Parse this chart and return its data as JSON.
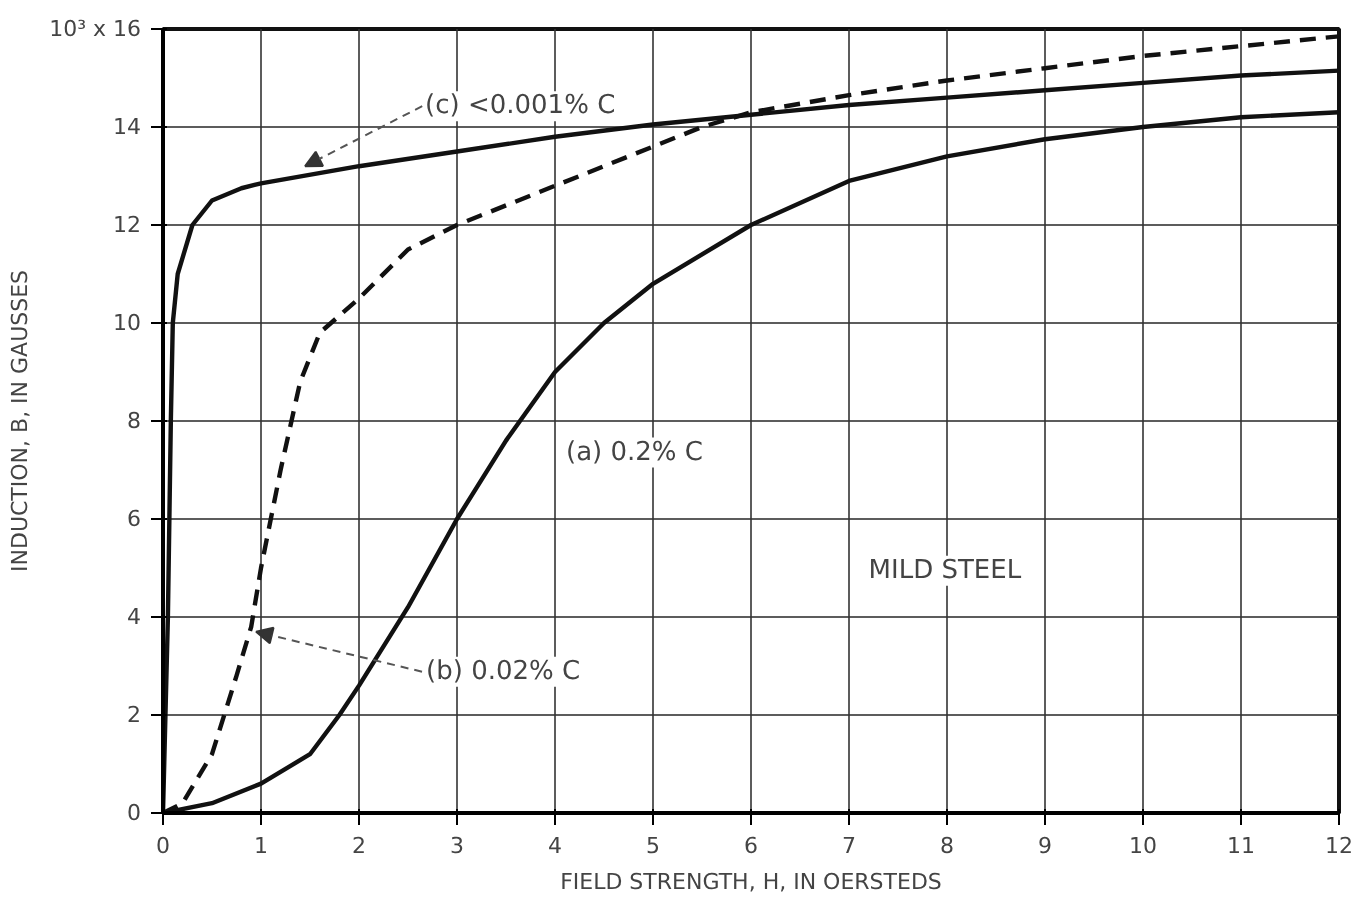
{
  "chart_data": {
    "type": "line",
    "xlabel": "FIELD STRENGTH, H, IN OERSTEDS",
    "ylabel": "INDUCTION, B, IN GAUSSES",
    "xlim": [
      0,
      12
    ],
    "ylim": [
      0,
      16
    ],
    "xticks": [
      0,
      1,
      2,
      3,
      4,
      5,
      6,
      7,
      8,
      9,
      10,
      11,
      12
    ],
    "yticks": [
      0,
      2,
      4,
      6,
      8,
      10,
      12,
      14,
      {
        "value": 16,
        "label": "10³ x 16"
      }
    ],
    "grid": true,
    "series": [
      {
        "color": "#111111",
        "line_style": "solid",
        "x": [
          0,
          0.5,
          1,
          1.5,
          1.8,
          2,
          2.5,
          3,
          3.5,
          4,
          4.5,
          5,
          6,
          7,
          8,
          9,
          10,
          11,
          12
        ],
        "values": [
          0,
          0.2,
          0.6,
          1.2,
          2,
          2.6,
          4.2,
          6,
          7.6,
          9,
          10,
          10.8,
          12,
          12.9,
          13.4,
          13.75,
          14,
          14.2,
          14.3
        ]
      },
      {
        "color": "#111111",
        "line_style": "dashed",
        "x": [
          0,
          0.2,
          0.5,
          0.75,
          0.9,
          1,
          1.2,
          1.4,
          1.6,
          2,
          2.5,
          3,
          4,
          5,
          5.5,
          6,
          7,
          8,
          9,
          10,
          11,
          12
        ],
        "values": [
          0,
          0.2,
          1.2,
          2.8,
          3.8,
          5,
          7,
          8.8,
          9.8,
          10.5,
          11.5,
          12,
          12.8,
          13.6,
          14,
          14.3,
          14.65,
          14.95,
          15.2,
          15.45,
          15.65,
          15.85
        ]
      },
      {
        "color": "#111111",
        "line_style": "solid",
        "x": [
          0,
          0.05,
          0.08,
          0.1,
          0.15,
          0.3,
          0.5,
          0.8,
          1,
          2,
          3,
          4,
          5,
          6,
          7,
          8,
          9,
          10,
          11,
          12
        ],
        "values": [
          0,
          4,
          8,
          10,
          11,
          12,
          12.5,
          12.75,
          12.85,
          13.2,
          13.5,
          13.8,
          14.05,
          14.25,
          14.45,
          14.6,
          14.75,
          14.9,
          15.05,
          15.15
        ]
      }
    ],
    "annotations": [
      {
        "text": "(a) 0.2% C",
        "x": 3.5,
        "y": 7.6
      },
      {
        "text": "(b) 0.02% C",
        "x": 0.95,
        "y": 3.7
      },
      {
        "text": "(c) <0.001% C",
        "x": 1.45,
        "y": 13.2
      },
      "MILD STEEL"
    ]
  }
}
